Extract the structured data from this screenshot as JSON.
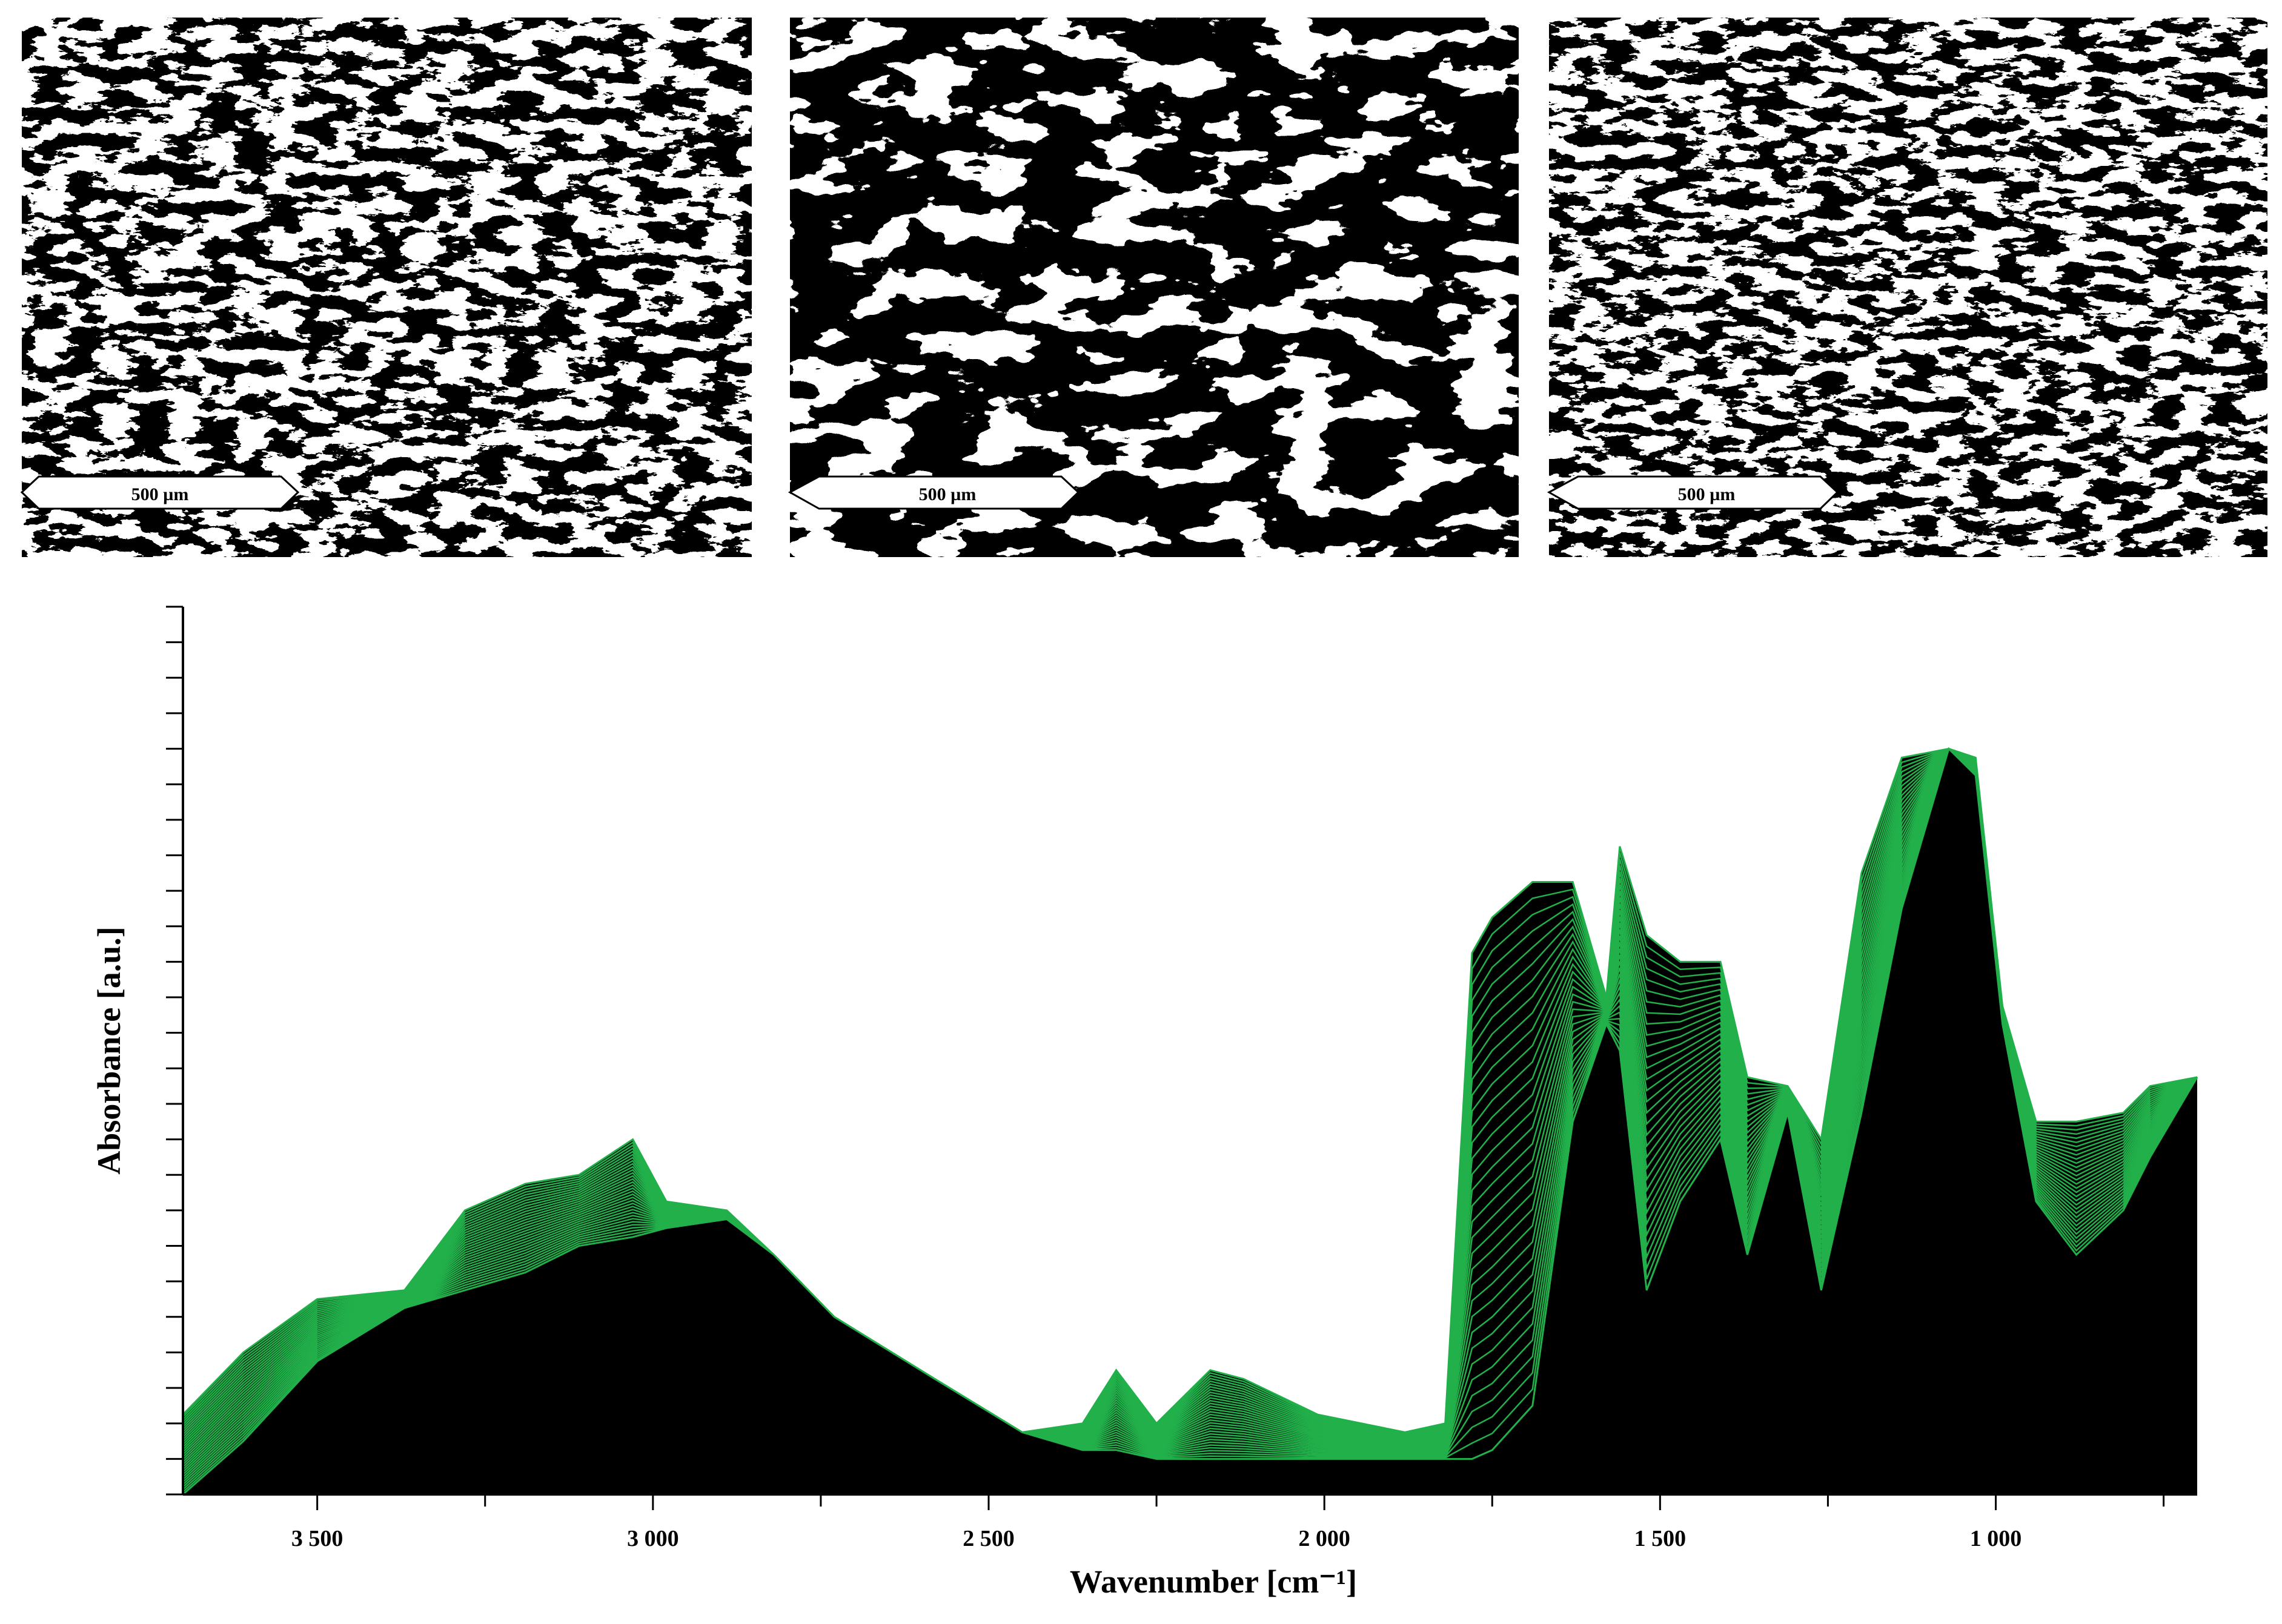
{
  "images": [
    {
      "scale_bar": "500 µm"
    },
    {
      "scale_bar": "500 µm"
    },
    {
      "scale_bar": "500 µm"
    }
  ],
  "chart_data": {
    "type": "waterfall",
    "xlabel": "Wavenumber [cm⁻¹]",
    "ylabel": "Absorbance [a.u.]",
    "x": [
      3700,
      3610,
      3500,
      3370,
      3280,
      3190,
      3110,
      3030,
      2980,
      2890,
      2820,
      2730,
      2580,
      2450,
      2360,
      2310,
      2250,
      2170,
      2120,
      2010,
      1880,
      1820,
      1780,
      1750,
      1690,
      1630,
      1580,
      1560,
      1520,
      1470,
      1410,
      1370,
      1310,
      1260,
      1200,
      1140,
      1070,
      1030,
      990,
      940,
      880,
      810,
      770,
      700
    ],
    "series": [
      {
        "color": "#22b04b",
        "values": [
          0.09,
          0.16,
          0.22,
          0.23,
          0.32,
          0.35,
          0.36,
          0.4,
          0.33,
          0.32,
          0.27,
          0.2,
          0.13,
          0.07,
          0.08,
          0.14,
          0.08,
          0.14,
          0.13,
          0.09,
          0.07,
          0.08,
          0.61,
          0.65,
          0.69,
          0.69,
          0.56,
          0.73,
          0.63,
          0.6,
          0.6,
          0.47,
          0.46,
          0.4,
          0.7,
          0.83,
          0.84,
          0.83,
          0.55,
          0.42,
          0.42,
          0.43,
          0.46,
          0.47
        ]
      },
      {
        "color": "#22b04b",
        "values": [
          0,
          0.06,
          0.15,
          0.21,
          0.23,
          0.25,
          0.28,
          0.29,
          0.3,
          0.31,
          0.27,
          0.2,
          0.13,
          0.07,
          0.05,
          0.05,
          0.04,
          0.04,
          0.04,
          0.04,
          0.04,
          0.04,
          0.04,
          0.05,
          0.1,
          0.42,
          0.53,
          0.5,
          0.23,
          0.33,
          0.4,
          0.27,
          0.43,
          0.23,
          0.43,
          0.66,
          0.84,
          0.81,
          0.53,
          0.33,
          0.27,
          0.32,
          0.38,
          0.47
        ]
      }
    ],
    "layers": 32,
    "xlim": [
      3700,
      700
    ],
    "ylim": [
      0,
      1
    ],
    "xticks": [
      {
        "value": 3500,
        "label": "3 500"
      },
      {
        "value": 3000,
        "label": "3 000"
      },
      {
        "value": 2500,
        "label": "2 500"
      },
      {
        "value": 2000,
        "label": "2 000"
      },
      {
        "value": 1500,
        "label": "1 500"
      },
      {
        "value": 1000,
        "label": "1 000"
      }
    ],
    "xminor": [
      3250,
      2750,
      2250,
      1750,
      1250,
      750
    ],
    "yticks": [
      0,
      0.04,
      0.08,
      0.12,
      0.16,
      0.2,
      0.24,
      0.28,
      0.32,
      0.36,
      0.4,
      0.44,
      0.48,
      0.52,
      0.56,
      0.6,
      0.64,
      0.68,
      0.72,
      0.76,
      0.8,
      0.84,
      0.88,
      0.92,
      0.96,
      1
    ],
    "ytick_labels_shown": false
  }
}
